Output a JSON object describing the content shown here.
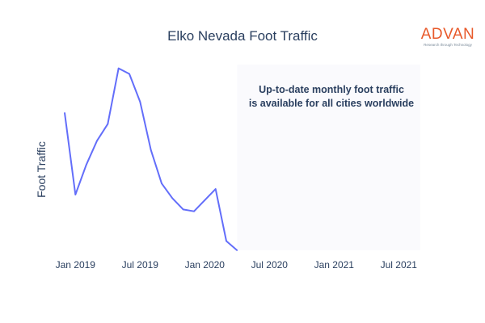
{
  "chart_data": {
    "type": "line",
    "title": "Elko Nevada Foot Traffic",
    "xlabel": "",
    "ylabel": "Foot Traffic",
    "x_tick_labels": [
      "Jan 2019",
      "Jul 2019",
      "Jan 2020",
      "Jul 2020",
      "Jan 2021",
      "Jul 2021"
    ],
    "x_range": [
      "2018-12",
      "2021-09"
    ],
    "y_range": [
      0,
      100
    ],
    "y_ticks_shown": false,
    "grid": false,
    "line_color": "#636efa",
    "series": [
      {
        "x": [
          "2018-12",
          "2019-01",
          "2019-02",
          "2019-03",
          "2019-04",
          "2019-05",
          "2019-06",
          "2019-07",
          "2019-08",
          "2019-09",
          "2019-10",
          "2019-11",
          "2019-12",
          "2020-01",
          "2020-02",
          "2020-03",
          "2020-04"
        ],
        "values": [
          74,
          30,
          46,
          59,
          68,
          98,
          95,
          80,
          54,
          36,
          28,
          22,
          21,
          27,
          33,
          5,
          0
        ]
      }
    ],
    "shaded_region": {
      "from": "2020-04",
      "to": "2021-09",
      "color": "#fafafd"
    },
    "annotation": [
      "Up-to-date monthly foot traffic",
      "is available for all cities worldwide"
    ]
  },
  "logo": {
    "name": "ADVAN",
    "tagline": "Research through Technology"
  }
}
